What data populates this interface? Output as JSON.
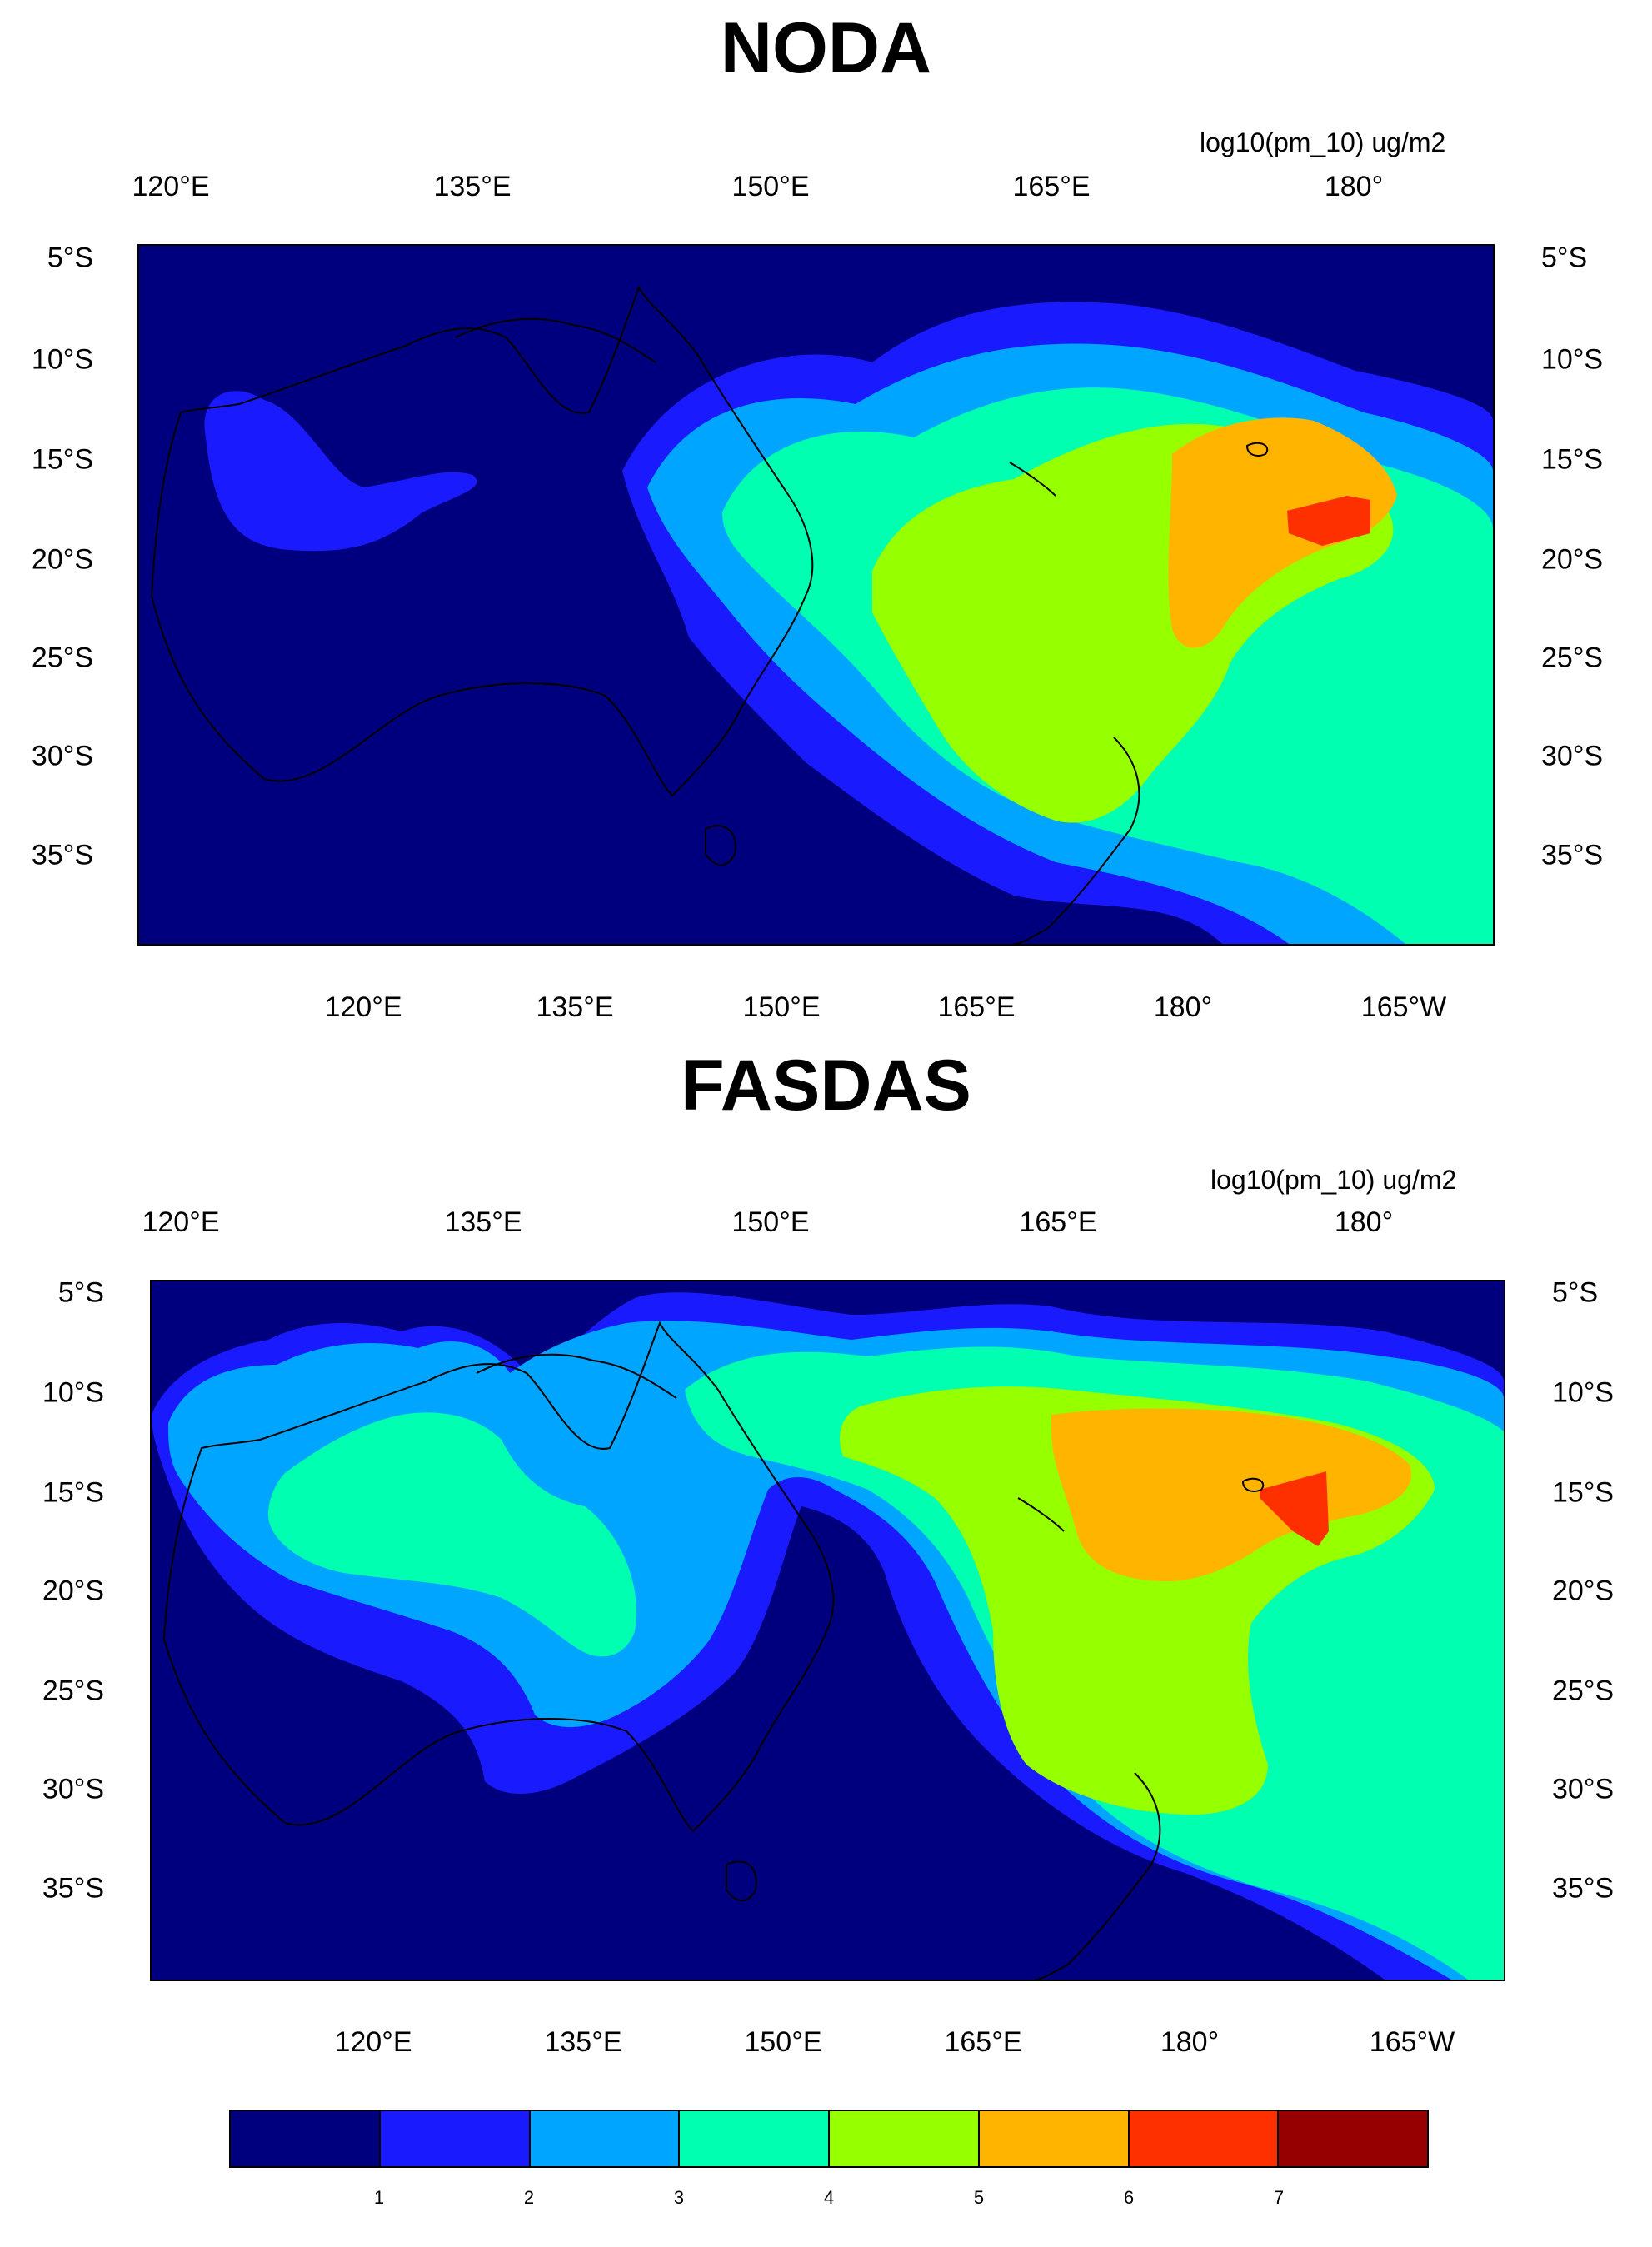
{
  "panels": [
    {
      "title": "NODA",
      "units": "log10(pm_10) ug/m2",
      "top_lon_labels": [
        "120°E",
        "135°E",
        "150°E",
        "165°E",
        "180°"
      ],
      "bottom_lon_labels": [
        "120°E",
        "135°E",
        "150°E",
        "165°E",
        "180°",
        "165°W"
      ],
      "lat_labels": [
        "5°S",
        "10°S",
        "15°S",
        "20°S",
        "25°S",
        "30°S",
        "35°S"
      ]
    },
    {
      "title": "FASDAS",
      "units": "log10(pm_10) ug/m2",
      "top_lon_labels": [
        "120°E",
        "135°E",
        "150°E",
        "165°E",
        "180°"
      ],
      "bottom_lon_labels": [
        "120°E",
        "135°E",
        "150°E",
        "165°E",
        "180°",
        "165°W"
      ],
      "lat_labels": [
        "5°S",
        "10°S",
        "15°S",
        "20°S",
        "25°S",
        "30°S",
        "35°S"
      ]
    }
  ],
  "colorbar": {
    "labels": [
      "1",
      "2",
      "3",
      "4",
      "5",
      "6",
      "7"
    ],
    "colors": [
      "#00007f",
      "#1a1aff",
      "#00a5ff",
      "#00ffb0",
      "#96ff00",
      "#ffb400",
      "#ff3000",
      "#960000"
    ]
  },
  "palette": {
    "level0": "#00007f",
    "level1": "#1a1aff",
    "level2": "#00a5ff",
    "level3": "#00ffb0",
    "level4": "#96ff00",
    "level5": "#ffb400",
    "level6": "#ff3000",
    "coastline": "#000000"
  }
}
